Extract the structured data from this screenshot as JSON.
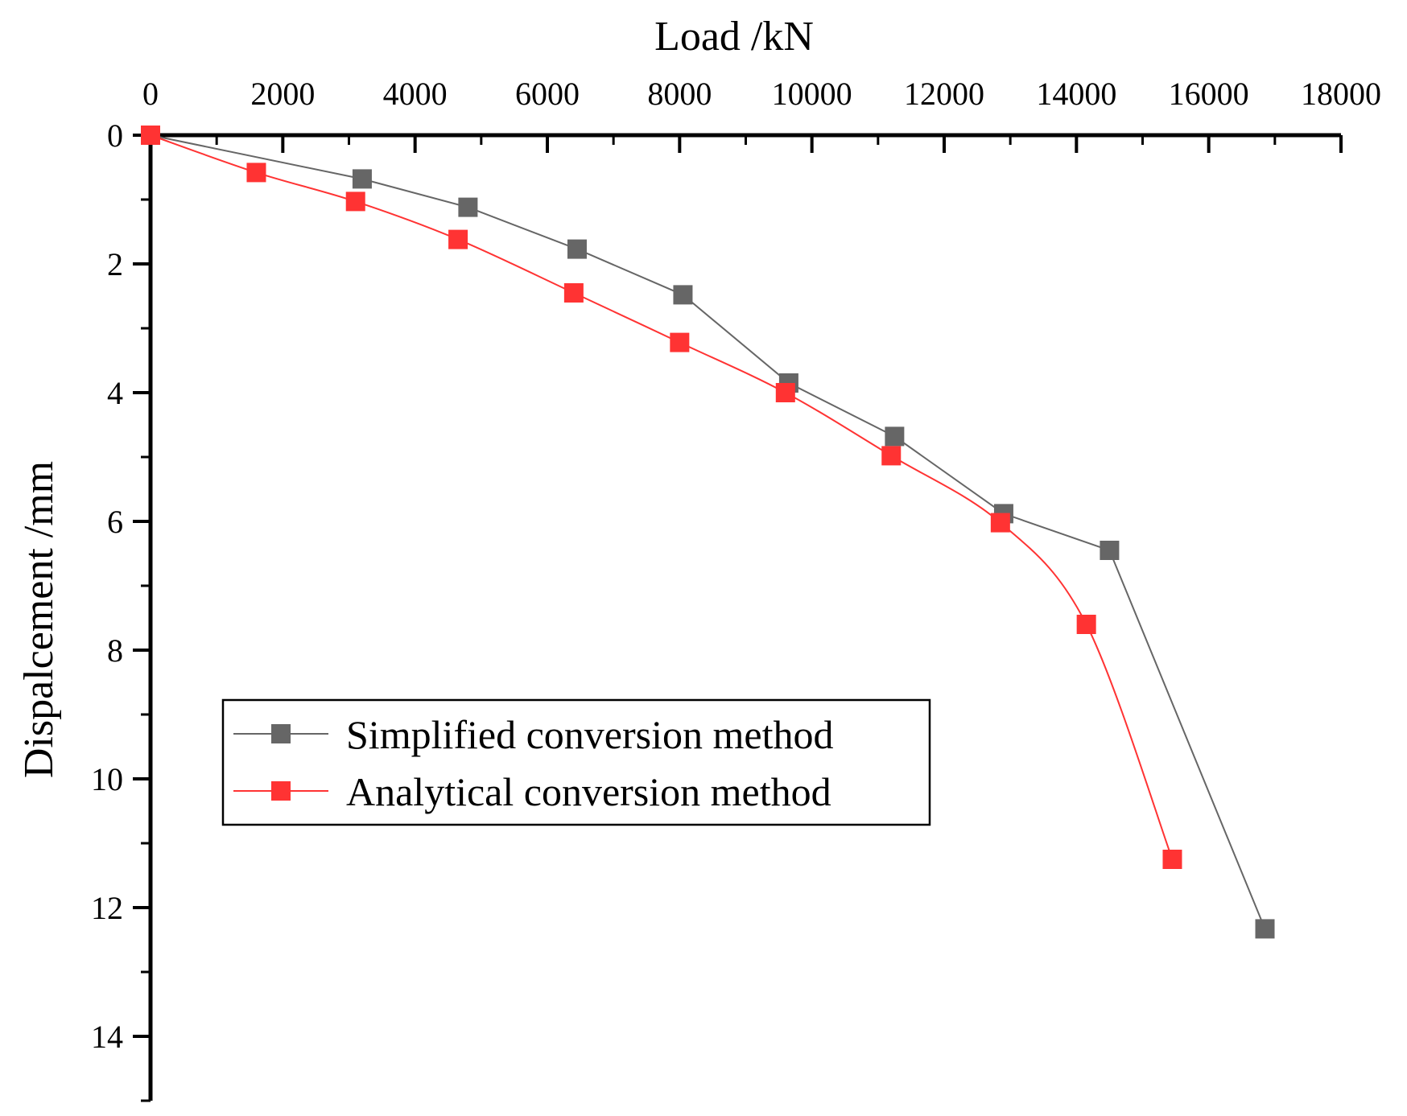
{
  "chart_data": {
    "type": "line",
    "title": "",
    "xlabel": "Load /kN",
    "ylabel": "Dispalcement /mm",
    "xlim": [
      0,
      18000
    ],
    "ylim": [
      0,
      15
    ],
    "y_inverted": true,
    "x_axis_position": "top",
    "xticks": [
      0,
      2000,
      4000,
      6000,
      8000,
      10000,
      12000,
      14000,
      16000,
      18000
    ],
    "xtick_labels": [
      "0",
      "2000",
      "4000",
      "6000",
      "8000",
      "10000",
      "12000",
      "14000",
      "16000",
      "18000"
    ],
    "yticks": [
      0,
      2,
      4,
      6,
      8,
      10,
      12,
      14
    ],
    "ytick_labels": [
      "0",
      "2",
      "4",
      "6",
      "8",
      "10",
      "12",
      "14"
    ],
    "grid": false,
    "legend_position": "left-middle",
    "series": [
      {
        "name": "Simplified conversion method",
        "color": "#666666",
        "marker": "square",
        "smooth": false,
        "x": [
          0,
          3200,
          4800,
          6450,
          8050,
          9650,
          11250,
          12900,
          14500,
          16850
        ],
        "y": [
          0,
          0.68,
          1.12,
          1.77,
          2.48,
          3.85,
          4.68,
          5.88,
          6.45,
          12.33
        ]
      },
      {
        "name": "Analytical conversion method",
        "color": "#ff3333",
        "marker": "square",
        "smooth": true,
        "x": [
          0,
          1600,
          3100,
          4650,
          6400,
          8000,
          9600,
          11200,
          12850,
          14150,
          15450
        ],
        "y": [
          0,
          0.58,
          1.03,
          1.62,
          2.45,
          3.22,
          4.0,
          4.98,
          6.02,
          7.6,
          11.25
        ]
      }
    ]
  }
}
